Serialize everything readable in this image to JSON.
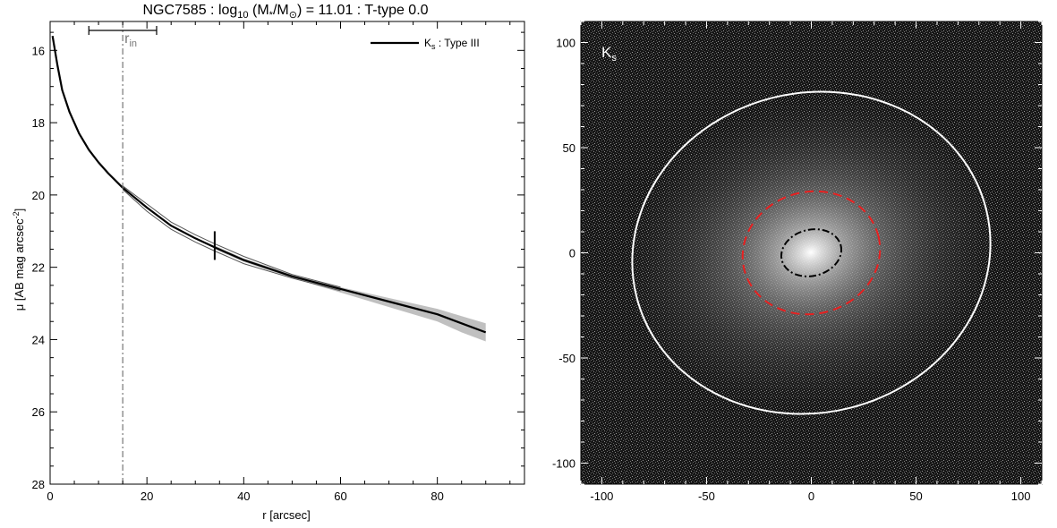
{
  "chart_data": [
    {
      "type": "line",
      "title_parts": {
        "galaxy": "NGC7585",
        "sep1": " : log",
        "sub10": "10",
        "paren_open": " (M",
        "star_sub": "*",
        "slash_m": "/M",
        "sun_sub": "⊙",
        "rest": ") = 11.01 : T-type 0.0"
      },
      "xlabel": "r [arcsec]",
      "ylabel_main": "μ [AB mag arcsec",
      "ylabel_sup": "-2",
      "ylabel_close": "]",
      "xlim": [
        0,
        98
      ],
      "ylim": [
        28,
        15.2
      ],
      "y_inverted": true,
      "x_ticks": [
        0,
        20,
        40,
        60,
        80
      ],
      "y_ticks": [
        16,
        18,
        20,
        22,
        24,
        26,
        28
      ],
      "legend": {
        "label_main": "K",
        "label_sub": "s",
        "label_rest": " : Type III",
        "position": "top-right"
      },
      "r_in": {
        "label": "r",
        "label_sub": "in",
        "x": 15,
        "range": [
          8,
          22
        ]
      },
      "break_marker": {
        "x": 34,
        "y": 21.4
      },
      "series": [
        {
          "color": "#000000",
          "x": [
            0.5,
            1.5,
            2.5,
            4,
            6,
            8,
            10,
            12,
            15,
            20,
            25,
            30,
            34,
            40,
            50,
            60,
            70,
            80,
            85,
            90
          ],
          "y": [
            15.6,
            16.4,
            17.1,
            17.7,
            18.3,
            18.75,
            19.1,
            19.4,
            19.8,
            20.35,
            20.85,
            21.2,
            21.45,
            21.8,
            22.25,
            22.6,
            22.95,
            23.3,
            23.55,
            23.8
          ]
        }
      ],
      "uncertainty_band": {
        "color": "#c0c0c0",
        "x": [
          34,
          40,
          50,
          60,
          70,
          80,
          85,
          90
        ],
        "lower": [
          21.4,
          21.75,
          22.2,
          22.55,
          22.85,
          23.15,
          23.35,
          23.55
        ],
        "upper": [
          21.5,
          21.85,
          22.3,
          22.7,
          23.1,
          23.5,
          23.8,
          24.05
        ]
      },
      "thin_bounds": {
        "color": "#555555",
        "x": [
          15,
          20,
          25,
          30,
          34,
          40,
          50,
          60
        ],
        "upper": [
          19.85,
          20.45,
          20.95,
          21.3,
          21.55,
          21.9,
          22.3,
          22.65
        ],
        "lower": [
          19.75,
          20.25,
          20.75,
          21.1,
          21.35,
          21.7,
          22.2,
          22.55
        ]
      }
    },
    {
      "type": "image",
      "band_label_main": "K",
      "band_label_sub": "s",
      "xlim": [
        -110,
        110
      ],
      "ylim": [
        -110,
        110
      ],
      "x_ticks": [
        -100,
        -50,
        0,
        50,
        100
      ],
      "y_ticks": [
        -100,
        -50,
        0,
        50,
        100
      ],
      "background_color": "#141414",
      "ellipses": [
        {
          "name": "outer",
          "color": "#ffffff",
          "style": "solid",
          "cx": 0,
          "cy": 0,
          "rx": 86,
          "ry": 76,
          "angle_deg": 14
        },
        {
          "name": "break",
          "color": "#e82020",
          "style": "dashed",
          "cx": 0,
          "cy": 0,
          "rx": 33,
          "ry": 29,
          "angle_deg": 14
        },
        {
          "name": "inner",
          "color": "#000000",
          "style": "dashdot",
          "cx": 0,
          "cy": 0,
          "rx": 14.5,
          "ry": 11,
          "angle_deg": 14
        }
      ]
    }
  ]
}
